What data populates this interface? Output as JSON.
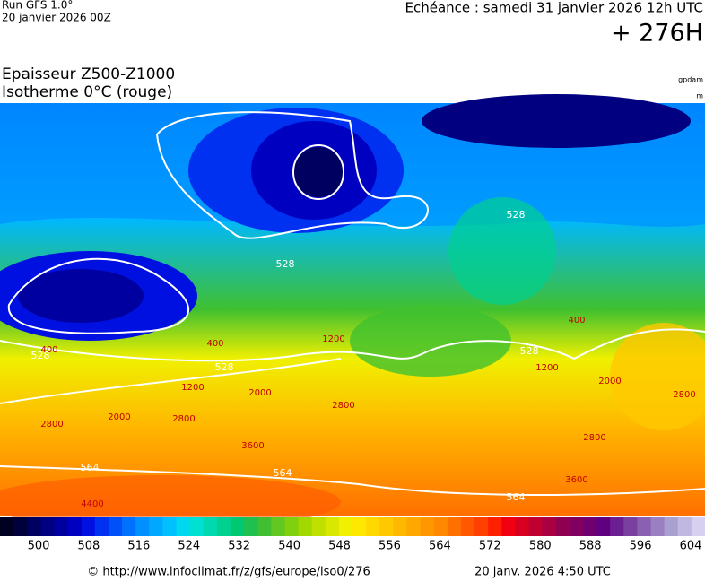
{
  "header": {
    "run": "Run GFS 1.0°",
    "run_date": "20 janvier 2026 00Z",
    "valid": "Echéance : samedi 31 janvier 2026 12h UTC",
    "lead": "+ 276H",
    "title1": "Epaisseur Z500-Z1000",
    "title2": "Isotherme 0°C (rouge)",
    "unit1": "gpdam",
    "unit2": "m"
  },
  "map": {
    "thickness_labels": [
      "528",
      "528",
      "528",
      "528",
      "528",
      "564",
      "564",
      "564"
    ],
    "freezing_labels": [
      "400",
      "400",
      "400",
      "1200",
      "1200",
      "1200",
      "2000",
      "2000",
      "2000",
      "2800",
      "2800",
      "2800",
      "2800",
      "2800",
      "3600",
      "3600",
      "4400"
    ]
  },
  "colorbar": {
    "labels": [
      "500",
      "508",
      "516",
      "524",
      "532",
      "540",
      "548",
      "556",
      "564",
      "572",
      "580",
      "588",
      "596",
      "604"
    ],
    "colors": [
      "#000020",
      "#00003a",
      "#000060",
      "#000080",
      "#0000a0",
      "#0000c0",
      "#0010e0",
      "#0030f0",
      "#0050f8",
      "#0070ff",
      "#0090ff",
      "#00a8ff",
      "#00c0ff",
      "#00d8f0",
      "#00e0d0",
      "#00d8b0",
      "#00d090",
      "#00c870",
      "#20c050",
      "#40c030",
      "#60c820",
      "#80d010",
      "#a0d800",
      "#c0e000",
      "#d8e800",
      "#f0f000",
      "#ffe800",
      "#ffd800",
      "#ffc800",
      "#ffb800",
      "#ffa800",
      "#ff9800",
      "#ff8800",
      "#ff7000",
      "#ff5800",
      "#ff4000",
      "#ff2000",
      "#f00010",
      "#d80020",
      "#c00030",
      "#a80040",
      "#900050",
      "#800060",
      "#700070",
      "#600080",
      "#6a2090",
      "#7a40a0",
      "#8a60b0",
      "#9a80c0",
      "#aaa0d0",
      "#c0b8e0",
      "#d8d0f0"
    ]
  },
  "footer": {
    "source": "© http://www.infoclimat.fr/z/gfs/europe/iso0/276",
    "generated": "20 janv. 2026  4:50 UTC"
  }
}
